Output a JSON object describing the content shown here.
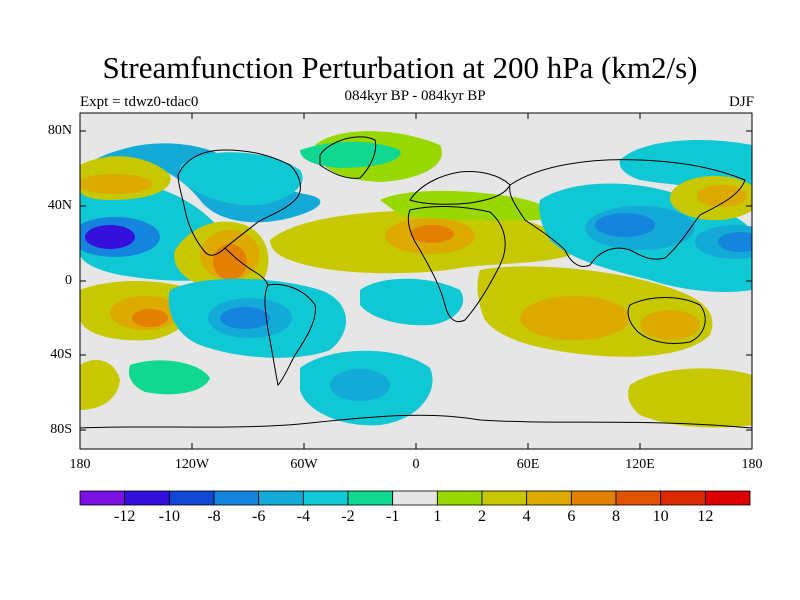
{
  "title": "Streamfunction Perturbation at 200 hPa (km2/s)",
  "subtitle": "084kyr BP - 084kyr BP",
  "expt_label": "Expt = tdwz0-tdac0",
  "season": "DJF",
  "map": {
    "lat_ticks": [
      "80N",
      "40N",
      "0",
      "40S",
      "80S"
    ],
    "lon_ticks": [
      "180",
      "120W",
      "60W",
      "0",
      "60E",
      "120E",
      "180"
    ]
  },
  "colorbar": {
    "labels": [
      "-12",
      "-10",
      "-8",
      "-6",
      "-4",
      "-2",
      "-1",
      "1",
      "2",
      "4",
      "6",
      "8",
      "10",
      "12"
    ],
    "colors": [
      "#7a10e0",
      "#3410dc",
      "#1446d6",
      "#1484dc",
      "#14aad8",
      "#10c8d4",
      "#10d890",
      "#e6e6e6",
      "#98d800",
      "#c8c800",
      "#dcaa00",
      "#e48000",
      "#e05400",
      "#dc2a00",
      "#dc0000"
    ]
  },
  "chart_data": {
    "type": "heatmap",
    "title": "Streamfunction Perturbation at 200 hPa (km2/s)",
    "subtitle": "084kyr BP - 084kyr BP",
    "xlim": [
      -180,
      180
    ],
    "ylim": [
      -90,
      90
    ],
    "levels": [
      -12,
      -10,
      -8,
      -6,
      -4,
      -2,
      -1,
      1,
      2,
      4,
      6,
      8,
      10,
      12
    ],
    "features": [
      {
        "lon": -165,
        "lat": 24,
        "value": -12
      },
      {
        "lon": -170,
        "lat": 50,
        "value": 4
      },
      {
        "lon": -100,
        "lat": 15,
        "value": 8
      },
      {
        "lon": -150,
        "lat": -20,
        "value": 8
      },
      {
        "lon": -85,
        "lat": -20,
        "value": -8
      },
      {
        "lon": -30,
        "lat": 10,
        "value": 2
      },
      {
        "lon": 10,
        "lat": 24,
        "value": 6
      },
      {
        "lon": 75,
        "lat": -22,
        "value": 6
      },
      {
        "lon": 100,
        "lat": 32,
        "value": -8
      },
      {
        "lon": 175,
        "lat": 22,
        "value": -8
      },
      {
        "lon": 162,
        "lat": 43,
        "value": 6
      },
      {
        "lon": -75,
        "lat": 45,
        "value": -4
      },
      {
        "lon": -55,
        "lat": 70,
        "value": 2
      },
      {
        "lon": -45,
        "lat": -55,
        "value": -4
      },
      {
        "lon": 170,
        "lat": -60,
        "value": 4
      }
    ]
  }
}
